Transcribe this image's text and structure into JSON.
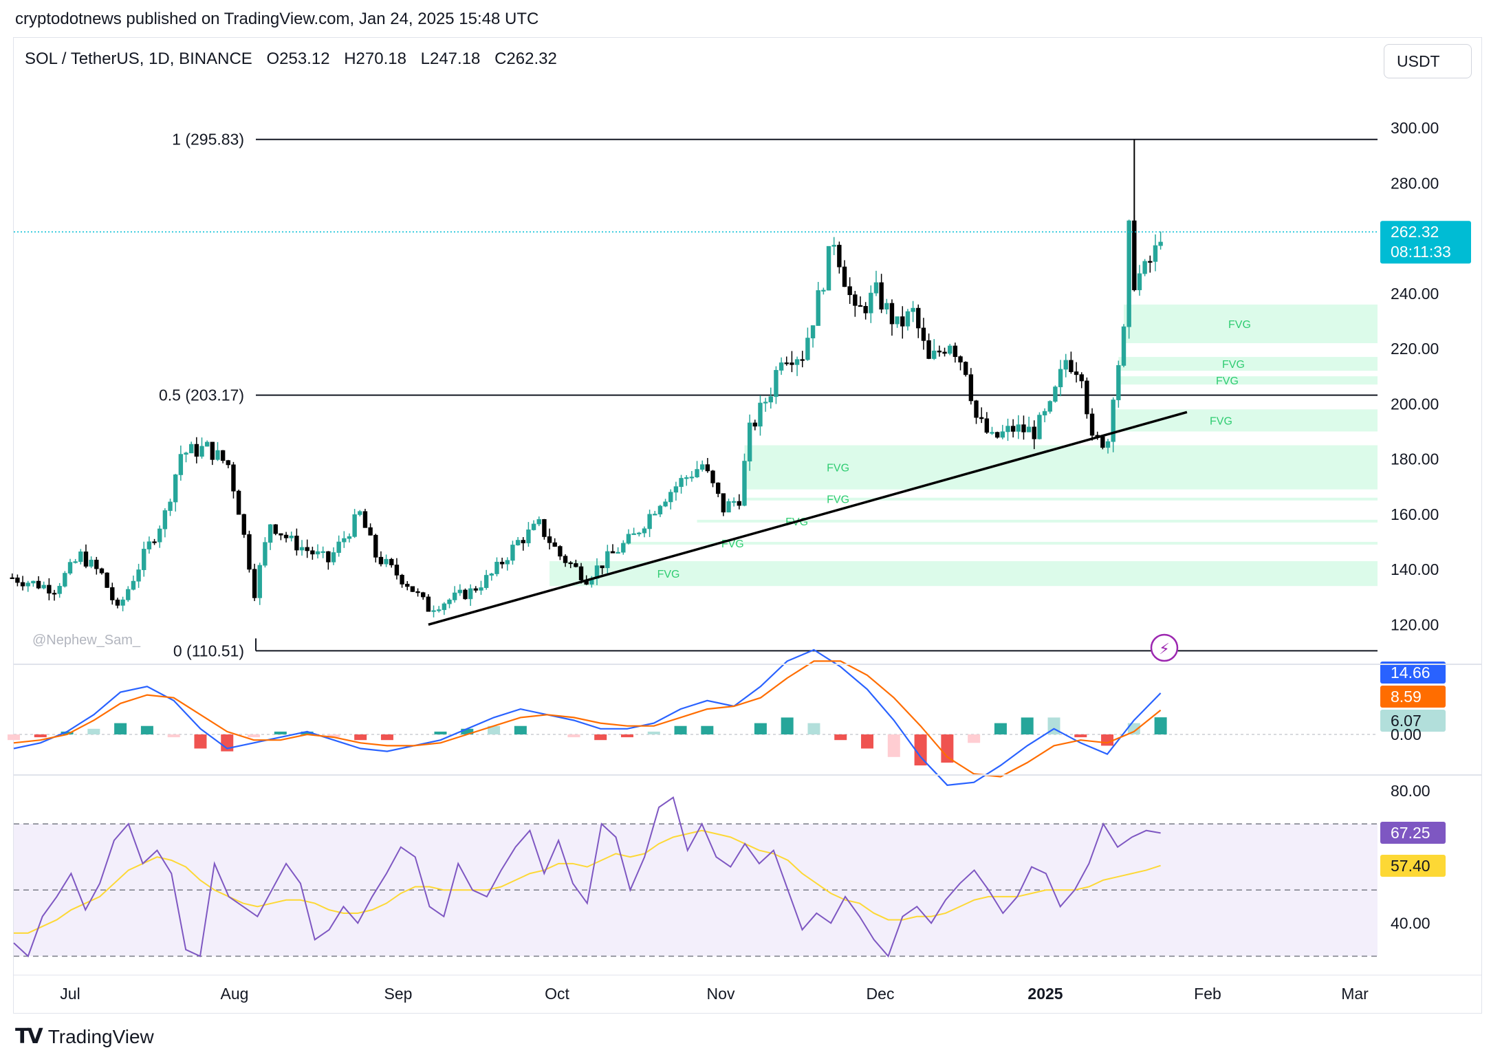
{
  "publisher_line": "cryptodotnews published on TradingView.com, Jan 24, 2025 15:48 UTC",
  "symbol": {
    "name": "SOL / TetherUS, 1D, BINANCE",
    "open": "O253.12",
    "high": "H270.18",
    "low": "L247.18",
    "close": "C262.32"
  },
  "currency_button": "USDT",
  "watermark": "@Nephew_Sam_",
  "footer_brand": "TradingView",
  "colors": {
    "up": "#26a69a",
    "down": "#000000",
    "candle_up_fill": "#26a69a",
    "fvg": "#dcfbea",
    "fvg_text": "#2ecc71",
    "price_badge": "#00bcd4",
    "macd": "#2962ff",
    "signal": "#ff6d00",
    "hist_pos": "#26a69a",
    "hist_pos_light": "#b2dfdb",
    "hist_neg": "#ef5350",
    "hist_neg_light": "#ffcdd2",
    "rsi": "#7e57c2",
    "rsi_ma": "#fdd835",
    "rsi_band": "#f3effb"
  },
  "time_axis": {
    "labels": [
      {
        "text": "Jul",
        "bold": false
      },
      {
        "text": "Aug",
        "bold": false
      },
      {
        "text": "Sep",
        "bold": false
      },
      {
        "text": "Oct",
        "bold": false
      },
      {
        "text": "Nov",
        "bold": false
      },
      {
        "text": "Dec",
        "bold": false
      },
      {
        "text": "2025",
        "bold": true
      },
      {
        "text": "Feb",
        "bold": false
      },
      {
        "text": "Mar",
        "bold": false
      }
    ]
  },
  "chart_data": [
    {
      "type": "candlestick",
      "title": "SOL / TetherUS, 1D, BINANCE",
      "ylim": [
        105,
        315
      ],
      "y_ticks": [
        "300.00",
        "280.00",
        "240.00",
        "220.00",
        "200.00",
        "180.00",
        "160.00",
        "140.00",
        "120.00"
      ],
      "last_price": {
        "value": 262.32,
        "label": "262.32",
        "countdown": "08:11:33"
      },
      "fib_levels": [
        {
          "label": "1 (295.83)",
          "value": 295.83
        },
        {
          "label": "0.5 (203.17)",
          "value": 203.17
        },
        {
          "label": "0 (110.51)",
          "value": 110.51
        }
      ],
      "fvg_zones": [
        {
          "label": "FVG",
          "from": "Jan 17",
          "low": 222,
          "high": 236
        },
        {
          "label": "FVG",
          "from": "Jan 16",
          "low": 212,
          "high": 217
        },
        {
          "label": "FVG",
          "from": "Jan 16",
          "low": 207,
          "high": 210
        },
        {
          "label": "FVG",
          "from": "Jan 15",
          "low": 190,
          "high": 198
        },
        {
          "label": "FVG",
          "from": "Nov 6",
          "low": 169,
          "high": 185
        },
        {
          "label": "FVG",
          "from": "Nov 6",
          "low": 165,
          "high": 166
        },
        {
          "label": "FVG",
          "from": "Oct 28",
          "low": 157,
          "high": 158
        },
        {
          "label": "FVG",
          "from": "Oct 14",
          "low": 149,
          "high": 150
        },
        {
          "label": "FVG",
          "from": "Sep 30",
          "low": 134,
          "high": 143
        }
      ],
      "trendline": {
        "from": {
          "date": "Sep 7",
          "price": 120
        },
        "to": {
          "date": "Jan 29",
          "price": 197
        }
      },
      "close_series": [
        {
          "date": "Jun 20",
          "close": 137
        },
        {
          "date": "Jun 28",
          "close": 133
        },
        {
          "date": "Jul 3",
          "close": 145
        },
        {
          "date": "Jul 7",
          "close": 138
        },
        {
          "date": "Jul 10",
          "close": 125
        },
        {
          "date": "Jul 15",
          "close": 145
        },
        {
          "date": "Jul 19",
          "close": 160
        },
        {
          "date": "Jul 22",
          "close": 182
        },
        {
          "date": "Jul 27",
          "close": 184
        },
        {
          "date": "Jul 31",
          "close": 178
        },
        {
          "date": "Aug 2",
          "close": 162
        },
        {
          "date": "Aug 5",
          "close": 132
        },
        {
          "date": "Aug 8",
          "close": 157
        },
        {
          "date": "Aug 12",
          "close": 150
        },
        {
          "date": "Aug 19",
          "close": 143
        },
        {
          "date": "Aug 25",
          "close": 160
        },
        {
          "date": "Aug 28",
          "close": 145
        },
        {
          "date": "Sep 3",
          "close": 135
        },
        {
          "date": "Sep 7",
          "close": 126
        },
        {
          "date": "Sep 15",
          "close": 132
        },
        {
          "date": "Sep 19",
          "close": 138
        },
        {
          "date": "Sep 24",
          "close": 150
        },
        {
          "date": "Sep 28",
          "close": 156
        },
        {
          "date": "Oct 2",
          "close": 145
        },
        {
          "date": "Oct 7",
          "close": 137
        },
        {
          "date": "Oct 11",
          "close": 144
        },
        {
          "date": "Oct 16",
          "close": 152
        },
        {
          "date": "Oct 21",
          "close": 165
        },
        {
          "date": "Oct 25",
          "close": 172
        },
        {
          "date": "Oct 29",
          "close": 178
        },
        {
          "date": "Nov 2",
          "close": 162
        },
        {
          "date": "Nov 5",
          "close": 166
        },
        {
          "date": "Nov 7",
          "close": 190
        },
        {
          "date": "Nov 11",
          "close": 205
        },
        {
          "date": "Nov 13",
          "close": 218
        },
        {
          "date": "Nov 17",
          "close": 218
        },
        {
          "date": "Nov 20",
          "close": 238
        },
        {
          "date": "Nov 23",
          "close": 260
        },
        {
          "date": "Nov 27",
          "close": 232
        },
        {
          "date": "Dec 1",
          "close": 240
        },
        {
          "date": "Dec 5",
          "close": 228
        },
        {
          "date": "Dec 8",
          "close": 233
        },
        {
          "date": "Dec 11",
          "close": 215
        },
        {
          "date": "Dec 15",
          "close": 223
        },
        {
          "date": "Dec 18",
          "close": 213
        },
        {
          "date": "Dec 20",
          "close": 195
        },
        {
          "date": "Dec 23",
          "close": 187
        },
        {
          "date": "Dec 27",
          "close": 191
        },
        {
          "date": "Dec 31",
          "close": 190
        },
        {
          "date": "Jan 3",
          "close": 198
        },
        {
          "date": "Jan 6",
          "close": 216
        },
        {
          "date": "Jan 9",
          "close": 212
        },
        {
          "date": "Jan 11",
          "close": 186
        },
        {
          "date": "Jan 14",
          "close": 187
        },
        {
          "date": "Jan 15",
          "close": 205
        },
        {
          "date": "Jan 17",
          "close": 225
        },
        {
          "date": "Jan 18",
          "close": 262
        },
        {
          "date": "Jan 19",
          "close": 245
        },
        {
          "date": "Jan 21",
          "close": 248
        },
        {
          "date": "Jan 23",
          "close": 255
        },
        {
          "date": "Jan 24",
          "close": 262.32
        }
      ]
    },
    {
      "type": "line",
      "title": "MACD",
      "badges": [
        {
          "series": "MACD",
          "label": "14.66"
        },
        {
          "series": "Signal",
          "label": "8.59"
        },
        {
          "series": "Histogram",
          "label": "6.07"
        }
      ],
      "y_ticks": [
        "0.00"
      ],
      "series": [
        {
          "values": [
            -5,
            -3,
            1,
            7,
            15,
            17,
            12,
            2,
            -5,
            -3,
            -1,
            1,
            -2,
            -5,
            -6,
            -4,
            -2,
            2,
            6,
            9,
            7,
            5,
            2,
            2,
            4,
            9,
            12,
            10,
            17,
            26,
            30,
            24,
            16,
            5,
            -8,
            -18,
            -17,
            -11,
            -4,
            2,
            -3,
            -7,
            5,
            14.66
          ]
        },
        {
          "values": [
            -3,
            -2,
            0,
            5,
            11,
            14,
            13,
            7,
            1,
            -2,
            -2,
            0,
            -1,
            -3,
            -4,
            -4,
            -3,
            0,
            3,
            6,
            7,
            6,
            4,
            3,
            3,
            6,
            9,
            10,
            13,
            20,
            26,
            26,
            21,
            13,
            3,
            -8,
            -14,
            -15,
            -10,
            -4,
            -2,
            -3,
            1,
            8.59
          ]
        },
        {
          "values": [
            -2,
            -1,
            1,
            2,
            4,
            3,
            -1,
            -5,
            -6,
            -1,
            1,
            1,
            -1,
            -2,
            -2,
            0,
            1,
            2,
            3,
            3,
            0,
            -1,
            -2,
            -1,
            1,
            3,
            3,
            0,
            4,
            6,
            4,
            -2,
            -5,
            -8,
            -11,
            -10,
            -3,
            4,
            6,
            6,
            -1,
            -4,
            4,
            6.07
          ]
        }
      ]
    },
    {
      "type": "line",
      "title": "RSI",
      "badges": [
        {
          "series": "RSI",
          "label": "67.25"
        },
        {
          "series": "RSI MA",
          "label": "57.40"
        }
      ],
      "y_ticks": [
        "80.00",
        "40.00"
      ],
      "bands": [
        70,
        50,
        30
      ],
      "series": [
        {
          "values": [
            34,
            30,
            42,
            48,
            55,
            44,
            52,
            65,
            70,
            58,
            62,
            55,
            32,
            30,
            58,
            48,
            45,
            42,
            50,
            58,
            52,
            35,
            38,
            45,
            40,
            48,
            55,
            63,
            60,
            45,
            42,
            58,
            50,
            48,
            56,
            63,
            68,
            55,
            65,
            52,
            46,
            70,
            66,
            50,
            60,
            75,
            78,
            62,
            70,
            60,
            57,
            64,
            58,
            62,
            50,
            38,
            43,
            40,
            48,
            42,
            35,
            30,
            42,
            45,
            40,
            47,
            52,
            56,
            50,
            43,
            48,
            57,
            55,
            45,
            50,
            58,
            70,
            63,
            66,
            68,
            67.25
          ]
        },
        {
          "values": [
            37,
            37,
            39,
            41,
            44,
            46,
            48,
            52,
            56,
            58,
            60,
            59,
            57,
            53,
            50,
            48,
            46,
            45,
            46,
            47,
            47,
            46,
            44,
            43,
            43,
            44,
            46,
            49,
            51,
            51,
            50,
            50,
            50,
            50,
            51,
            53,
            55,
            56,
            58,
            58,
            57,
            59,
            61,
            60,
            61,
            64,
            66,
            67,
            68,
            67,
            66,
            64,
            62,
            61,
            59,
            55,
            52,
            49,
            47,
            46,
            43,
            41,
            41,
            42,
            42,
            43,
            45,
            47,
            48,
            48,
            48,
            49,
            50,
            50,
            50,
            51,
            53,
            54,
            55,
            56,
            57.4
          ]
        }
      ]
    }
  ]
}
